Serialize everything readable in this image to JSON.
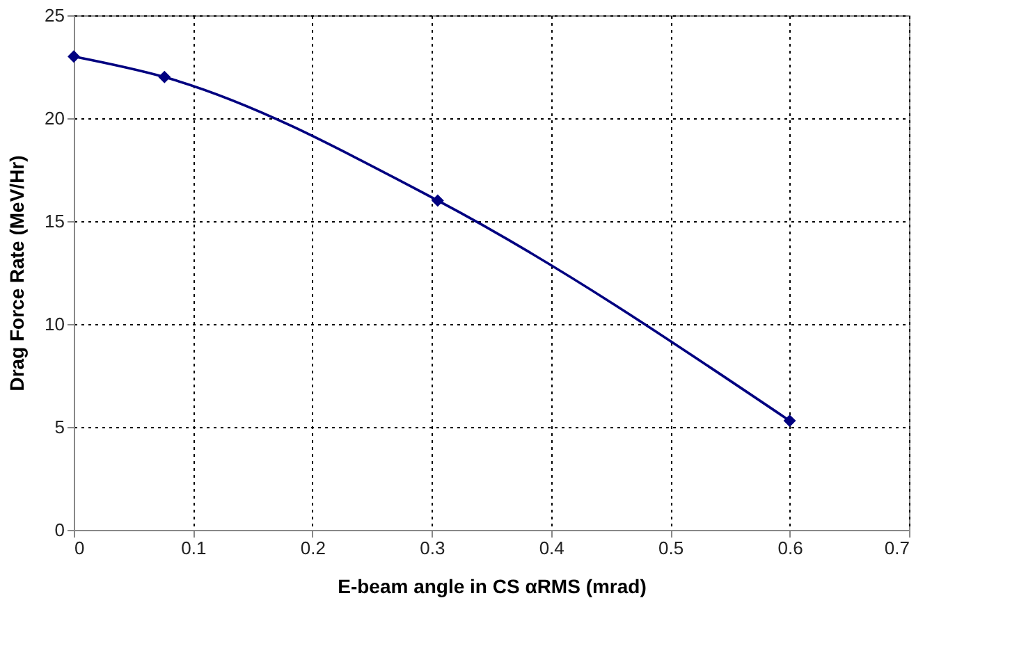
{
  "chart_data": {
    "type": "line",
    "xlabel": "E-beam angle in CS αRMS (mrad)",
    "ylabel": "Drag Force Rate (MeV/Hr)",
    "x": [
      0,
      0.076,
      0.305,
      0.6
    ],
    "series": [
      {
        "color": "#000080",
        "values": [
          23,
          22,
          16,
          5.3
        ]
      }
    ],
    "xlim": [
      0,
      0.7
    ],
    "xticks": [
      0,
      0.1,
      0.2,
      0.3,
      0.4,
      0.5,
      0.6,
      0.7
    ],
    "ylim": [
      0,
      25
    ],
    "yticks": [
      0,
      5,
      10,
      15,
      20,
      25
    ],
    "grid": true,
    "marker": "diamond",
    "line_style": "solid"
  }
}
